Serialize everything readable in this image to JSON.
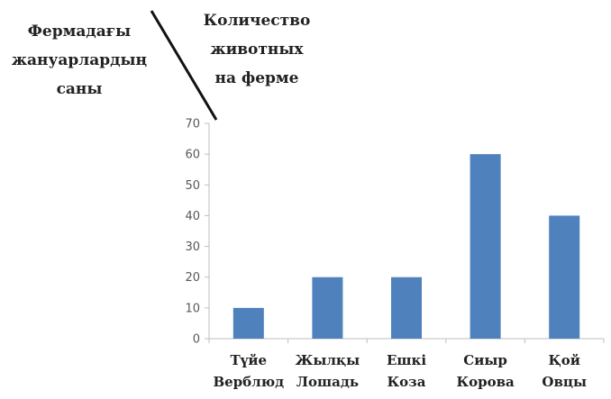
{
  "header": {
    "left_lines": [
      "Фермадағы",
      "жануарлардың",
      "саны"
    ],
    "right_lines": [
      "Количество",
      "животных",
      "на ферме"
    ]
  },
  "chart_data": {
    "type": "bar",
    "categories": [
      [
        "Түйе",
        "Верблюд"
      ],
      [
        "Жылқы",
        "Лошадь"
      ],
      [
        "Ешкі",
        "Коза"
      ],
      [
        "Сиыр",
        "Корова"
      ],
      [
        "Қой",
        "Овцы"
      ]
    ],
    "values": [
      10,
      20,
      20,
      60,
      40
    ],
    "ylim": [
      0,
      70
    ],
    "yticks": [
      0,
      10,
      20,
      30,
      40,
      50,
      60,
      70
    ],
    "grid": false,
    "bar_color": "#4F81BD",
    "axis_color": "#BFBFBF"
  }
}
